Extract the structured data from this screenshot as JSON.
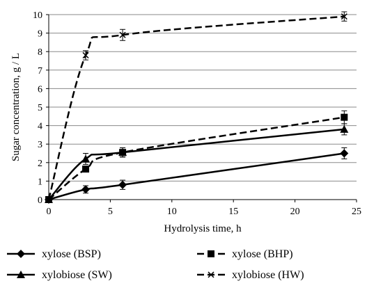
{
  "chart_data": {
    "type": "line",
    "title": "",
    "xlabel": "Hydrolysis time, h",
    "ylabel": "Sugar  concentration, g / L",
    "xlim": [
      0,
      25
    ],
    "ylim": [
      0,
      10
    ],
    "xticks": [
      "0",
      "5",
      "10",
      "15",
      "20",
      "25"
    ],
    "yticks": [
      "0",
      "1",
      "2",
      "3",
      "4",
      "5",
      "6",
      "7",
      "8",
      "9",
      "10"
    ],
    "grid": "horizontal",
    "legend_position": "bottom",
    "series": [
      {
        "name": "xylose (BSP)",
        "marker": "diamond",
        "line": "solid",
        "color": "#000000",
        "x": [
          0,
          3,
          6,
          24
        ],
        "y": [
          0,
          0.55,
          0.8,
          2.5
        ],
        "error": [
          0,
          0.2,
          0.25,
          0.3
        ]
      },
      {
        "name": "xylose (BHP)",
        "marker": "square",
        "line": "dashed",
        "color": "#000000",
        "x": [
          0,
          3,
          6,
          24
        ],
        "y": [
          0,
          1.65,
          2.55,
          4.45
        ],
        "error": [
          0,
          0.15,
          0.25,
          0.35
        ]
      },
      {
        "name": "xylobiose (SW)",
        "marker": "triangle",
        "line": "solid",
        "color": "#000000",
        "x": [
          0,
          3,
          6,
          24
        ],
        "y": [
          0,
          2.2,
          2.55,
          3.8
        ],
        "error": [
          0,
          0.3,
          0.25,
          0.3
        ]
      },
      {
        "name": "xylobiose (HW)",
        "marker": "x",
        "line": "dashed",
        "color": "#000000",
        "x": [
          0,
          3,
          6,
          24
        ],
        "y": [
          0,
          7.8,
          8.9,
          9.9
        ],
        "error": [
          0,
          0.25,
          0.3,
          0.25
        ]
      }
    ]
  }
}
